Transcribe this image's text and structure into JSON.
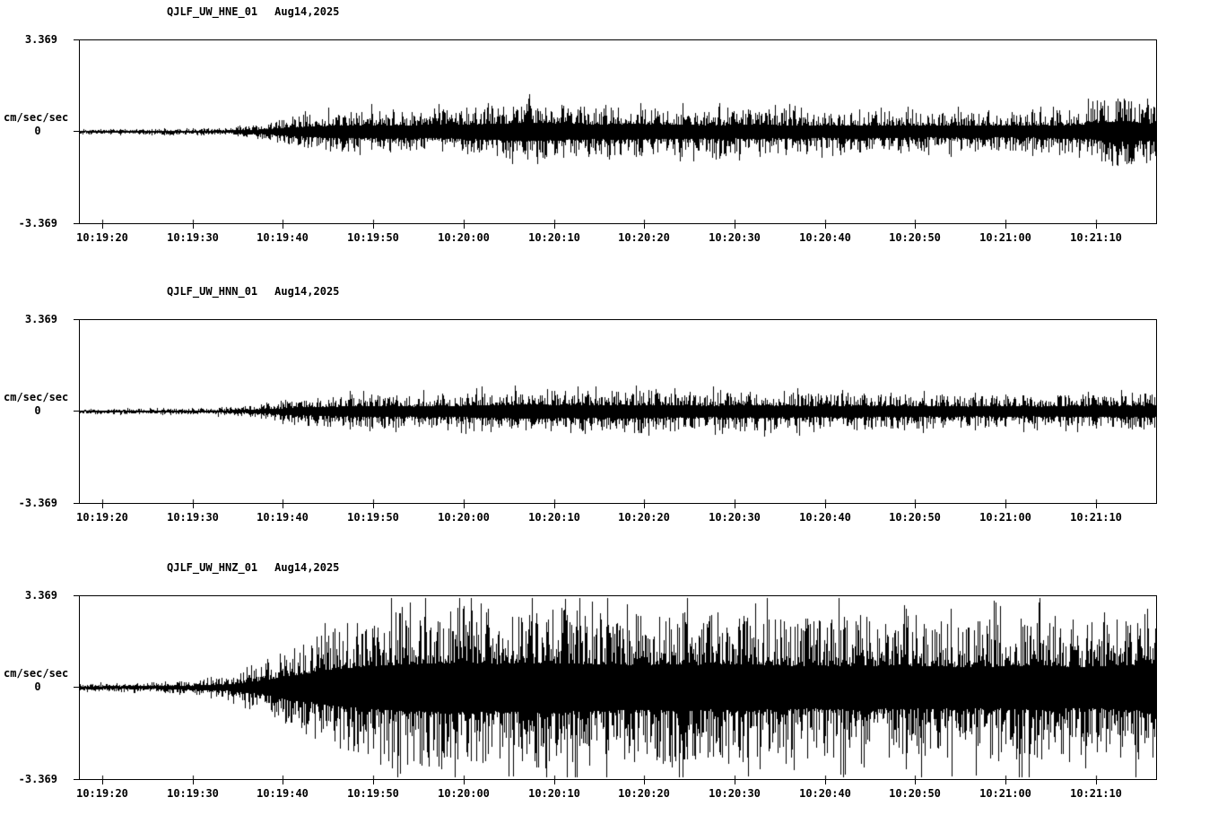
{
  "colors": {
    "background": "#ffffff",
    "trace": "#000000",
    "axis": "#000000"
  },
  "chart_data": [
    {
      "type": "line",
      "subtype": "seismogram-waveform",
      "title": "QJLF_UW_HNE_01",
      "date_label": "Aug14,2025",
      "ylabel_units": "cm/sec/sec",
      "y_tick_labels": [
        "3.369",
        "0",
        "-3.369"
      ],
      "ylim": [
        -3.369,
        3.369
      ],
      "x_tick_labels": [
        "10:19:20",
        "10:19:30",
        "10:19:40",
        "10:19:50",
        "10:20:00",
        "10:20:10",
        "10:20:20",
        "10:20:30",
        "10:20:40",
        "10:20:50",
        "10:21:00",
        "10:21:10"
      ],
      "x_tick_interval_seconds": 10,
      "envelope_amplitude": [
        0.1,
        0.1,
        0.11,
        0.12,
        0.15,
        0.3,
        0.6,
        0.75,
        0.8,
        0.75,
        0.85,
        0.95,
        1.1,
        1.0,
        0.9,
        0.95,
        0.85,
        0.8,
        0.85,
        0.8,
        0.75,
        0.8,
        0.75,
        0.72,
        0.75,
        0.7,
        0.75,
        0.85,
        1.3,
        1.0
      ]
    },
    {
      "type": "line",
      "subtype": "seismogram-waveform",
      "title": "QJLF_UW_HNN_01",
      "date_label": "Aug14,2025",
      "ylabel_units": "cm/sec/sec",
      "y_tick_labels": [
        "3.369",
        "0",
        "-3.369"
      ],
      "ylim": [
        -3.369,
        3.369
      ],
      "x_tick_labels": [
        "10:19:20",
        "10:19:30",
        "10:19:40",
        "10:19:50",
        "10:20:00",
        "10:20:10",
        "10:20:20",
        "10:20:30",
        "10:20:40",
        "10:20:50",
        "10:21:00",
        "10:21:10"
      ],
      "x_tick_interval_seconds": 10,
      "envelope_amplitude": [
        0.08,
        0.09,
        0.1,
        0.11,
        0.14,
        0.28,
        0.5,
        0.6,
        0.65,
        0.6,
        0.65,
        0.75,
        0.85,
        0.8,
        0.75,
        0.8,
        0.75,
        0.7,
        0.75,
        0.7,
        0.65,
        0.7,
        0.65,
        0.62,
        0.6,
        0.62,
        0.6,
        0.62,
        0.68,
        0.72
      ]
    },
    {
      "type": "line",
      "subtype": "seismogram-waveform",
      "title": "QJLF_UW_HNZ_01",
      "date_label": "Aug14,2025",
      "ylabel_units": "cm/sec/sec",
      "y_tick_labels": [
        "3.369",
        "0",
        "-3.369"
      ],
      "ylim": [
        -3.369,
        3.369
      ],
      "x_tick_labels": [
        "10:19:20",
        "10:19:30",
        "10:19:40",
        "10:19:50",
        "10:20:00",
        "10:20:10",
        "10:20:20",
        "10:20:30",
        "10:20:40",
        "10:20:50",
        "10:21:00",
        "10:21:10"
      ],
      "x_tick_interval_seconds": 10,
      "envelope_amplitude": [
        0.15,
        0.16,
        0.18,
        0.25,
        0.4,
        0.9,
        1.7,
        2.3,
        2.7,
        2.9,
        3.0,
        2.9,
        2.95,
        3.0,
        2.85,
        2.75,
        2.85,
        2.7,
        2.75,
        2.65,
        2.6,
        2.7,
        2.6,
        2.65,
        2.5,
        2.6,
        2.7,
        2.5,
        2.7,
        2.9
      ]
    }
  ]
}
